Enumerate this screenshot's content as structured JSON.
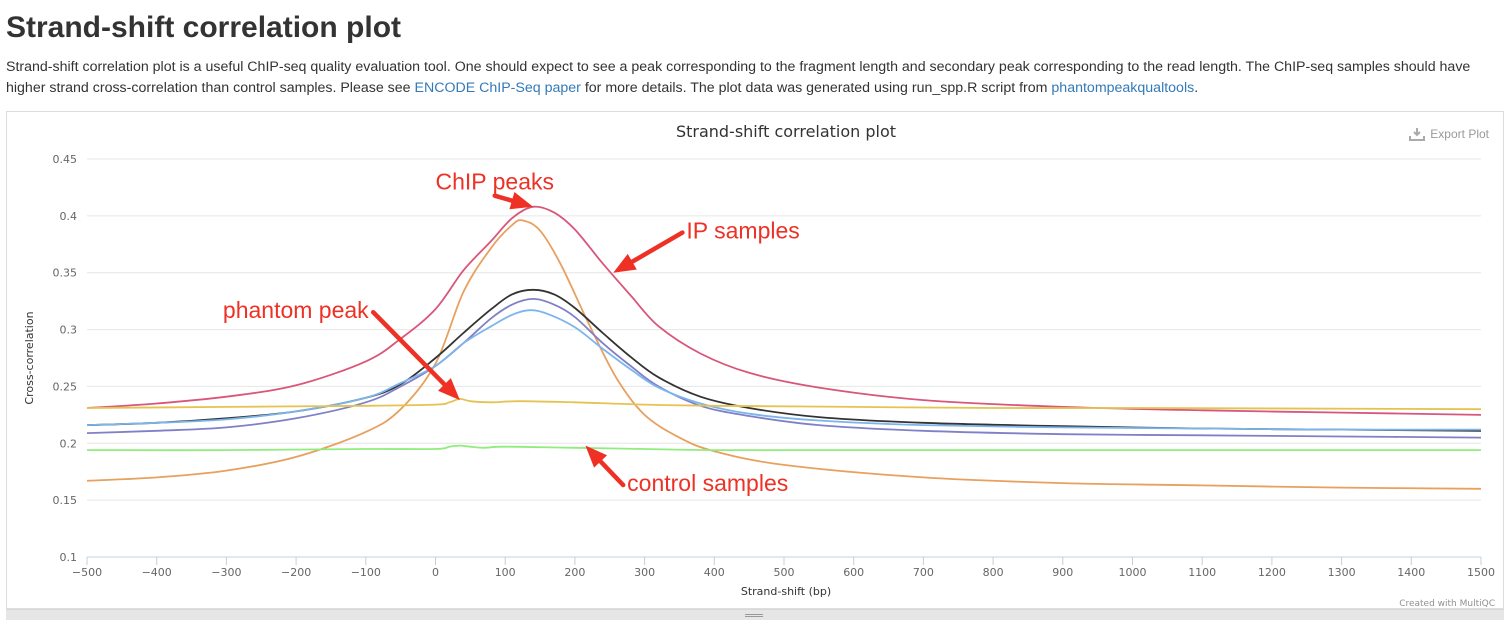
{
  "page": {
    "heading": "Strand-shift correlation plot",
    "intro_part1": "Strand-shift correlation plot is a useful ChIP-seq quality evaluation tool. One should expect to see a peak corresponding to the fragment length and secondary peak corresponding to the read length. The ChIP-seq samples should have higher strand cross-correlation than control samples. Please see ",
    "encode_link": "ENCODE ChIP-Seq paper",
    "intro_part2": " for more details. The plot data was generated using run_spp.R script from ",
    "phantom_link": "phantompeakqualtools",
    "intro_part3": "."
  },
  "toolbar": {
    "export_label": "Export Plot",
    "export_icon": "download-icon"
  },
  "chart_data": {
    "type": "line",
    "title": "Strand-shift correlation plot",
    "xlabel": "Strand-shift (bp)",
    "ylabel": "Cross-correlation",
    "xlim": [
      -500,
      1500
    ],
    "ylim": [
      0.1,
      0.45
    ],
    "xticks": [
      -500,
      -400,
      -300,
      -200,
      -100,
      0,
      100,
      200,
      300,
      400,
      500,
      600,
      700,
      800,
      900,
      1000,
      1100,
      1200,
      1300,
      1400,
      1500
    ],
    "yticks": [
      0.1,
      0.15,
      0.2,
      0.25,
      0.3,
      0.35,
      0.4,
      0.45
    ],
    "ytick_labels": [
      "0.1",
      "0.15",
      "0.2",
      "0.25",
      "0.3",
      "0.35",
      "0.4",
      "0.45"
    ],
    "grid": true,
    "credit": "Created with MultiQC",
    "series": [
      {
        "color": "#d9567b",
        "points": [
          [
            -500,
            0.231
          ],
          [
            -400,
            0.235
          ],
          [
            -300,
            0.241
          ],
          [
            -200,
            0.251
          ],
          [
            -100,
            0.272
          ],
          [
            -50,
            0.292
          ],
          [
            0,
            0.318
          ],
          [
            40,
            0.352
          ],
          [
            80,
            0.378
          ],
          [
            110,
            0.398
          ],
          [
            140,
            0.408
          ],
          [
            170,
            0.403
          ],
          [
            200,
            0.388
          ],
          [
            240,
            0.358
          ],
          [
            280,
            0.33
          ],
          [
            320,
            0.303
          ],
          [
            380,
            0.279
          ],
          [
            450,
            0.262
          ],
          [
            550,
            0.249
          ],
          [
            700,
            0.238
          ],
          [
            900,
            0.232
          ],
          [
            1100,
            0.229
          ],
          [
            1300,
            0.227
          ],
          [
            1500,
            0.225
          ]
        ]
      },
      {
        "color": "#e8a05f",
        "points": [
          [
            -500,
            0.167
          ],
          [
            -400,
            0.17
          ],
          [
            -300,
            0.176
          ],
          [
            -200,
            0.188
          ],
          [
            -100,
            0.21
          ],
          [
            -50,
            0.23
          ],
          [
            0,
            0.27
          ],
          [
            40,
            0.333
          ],
          [
            80,
            0.372
          ],
          [
            110,
            0.392
          ],
          [
            125,
            0.396
          ],
          [
            150,
            0.387
          ],
          [
            180,
            0.357
          ],
          [
            220,
            0.305
          ],
          [
            260,
            0.257
          ],
          [
            300,
            0.225
          ],
          [
            350,
            0.205
          ],
          [
            400,
            0.193
          ],
          [
            500,
            0.181
          ],
          [
            700,
            0.17
          ],
          [
            900,
            0.165
          ],
          [
            1100,
            0.163
          ],
          [
            1300,
            0.161
          ],
          [
            1500,
            0.16
          ]
        ]
      },
      {
        "color": "#333333",
        "points": [
          [
            -500,
            0.216
          ],
          [
            -400,
            0.218
          ],
          [
            -300,
            0.222
          ],
          [
            -200,
            0.228
          ],
          [
            -100,
            0.24
          ],
          [
            -50,
            0.252
          ],
          [
            0,
            0.275
          ],
          [
            40,
            0.297
          ],
          [
            80,
            0.318
          ],
          [
            110,
            0.331
          ],
          [
            140,
            0.335
          ],
          [
            170,
            0.331
          ],
          [
            200,
            0.319
          ],
          [
            240,
            0.297
          ],
          [
            280,
            0.276
          ],
          [
            320,
            0.258
          ],
          [
            380,
            0.241
          ],
          [
            450,
            0.231
          ],
          [
            550,
            0.223
          ],
          [
            700,
            0.218
          ],
          [
            900,
            0.215
          ],
          [
            1100,
            0.213
          ],
          [
            1300,
            0.212
          ],
          [
            1500,
            0.211
          ]
        ]
      },
      {
        "color": "#8080c8",
        "points": [
          [
            -500,
            0.209
          ],
          [
            -400,
            0.211
          ],
          [
            -300,
            0.214
          ],
          [
            -200,
            0.222
          ],
          [
            -100,
            0.236
          ],
          [
            -50,
            0.25
          ],
          [
            0,
            0.268
          ],
          [
            40,
            0.288
          ],
          [
            80,
            0.31
          ],
          [
            110,
            0.322
          ],
          [
            140,
            0.327
          ],
          [
            170,
            0.322
          ],
          [
            200,
            0.311
          ],
          [
            240,
            0.288
          ],
          [
            280,
            0.268
          ],
          [
            320,
            0.25
          ],
          [
            380,
            0.233
          ],
          [
            450,
            0.224
          ],
          [
            550,
            0.216
          ],
          [
            700,
            0.211
          ],
          [
            900,
            0.208
          ],
          [
            1100,
            0.207
          ],
          [
            1300,
            0.206
          ],
          [
            1500,
            0.205
          ]
        ]
      },
      {
        "color": "#7cb5ec",
        "points": [
          [
            -500,
            0.216
          ],
          [
            -400,
            0.218
          ],
          [
            -300,
            0.221
          ],
          [
            -200,
            0.228
          ],
          [
            -100,
            0.24
          ],
          [
            -50,
            0.253
          ],
          [
            0,
            0.268
          ],
          [
            40,
            0.288
          ],
          [
            80,
            0.303
          ],
          [
            110,
            0.313
          ],
          [
            135,
            0.317
          ],
          [
            160,
            0.314
          ],
          [
            200,
            0.302
          ],
          [
            240,
            0.283
          ],
          [
            280,
            0.265
          ],
          [
            320,
            0.249
          ],
          [
            380,
            0.235
          ],
          [
            450,
            0.226
          ],
          [
            550,
            0.22
          ],
          [
            700,
            0.216
          ],
          [
            900,
            0.214
          ],
          [
            1100,
            0.213
          ],
          [
            1300,
            0.212
          ],
          [
            1500,
            0.212
          ]
        ]
      },
      {
        "color": "#e4c352",
        "points": [
          [
            -500,
            0.231
          ],
          [
            -300,
            0.232
          ],
          [
            -100,
            0.233
          ],
          [
            0,
            0.234
          ],
          [
            20,
            0.236
          ],
          [
            35,
            0.239
          ],
          [
            50,
            0.237
          ],
          [
            80,
            0.236
          ],
          [
            120,
            0.237
          ],
          [
            200,
            0.236
          ],
          [
            300,
            0.234
          ],
          [
            400,
            0.233
          ],
          [
            600,
            0.232
          ],
          [
            800,
            0.231
          ],
          [
            1000,
            0.231
          ],
          [
            1500,
            0.23
          ]
        ]
      },
      {
        "color": "#90ed7d",
        "points": [
          [
            -500,
            0.194
          ],
          [
            -300,
            0.194
          ],
          [
            -100,
            0.195
          ],
          [
            0,
            0.195
          ],
          [
            20,
            0.197
          ],
          [
            35,
            0.198
          ],
          [
            50,
            0.197
          ],
          [
            70,
            0.196
          ],
          [
            100,
            0.197
          ],
          [
            200,
            0.196
          ],
          [
            300,
            0.195
          ],
          [
            400,
            0.194
          ],
          [
            600,
            0.194
          ],
          [
            1000,
            0.194
          ],
          [
            1500,
            0.194
          ]
        ]
      }
    ],
    "annotations": [
      {
        "text": "ChIP peaks",
        "x": 0,
        "y": 0.423,
        "arrow_to": [
          140,
          0.408
        ]
      },
      {
        "text": "IP samples",
        "x": 360,
        "y": 0.38,
        "arrow_to": [
          255,
          0.35
        ]
      },
      {
        "text": "phantom peak",
        "x": -305,
        "y": 0.31,
        "arrow_to": [
          35,
          0.238
        ]
      },
      {
        "text": "control samples",
        "x": 275,
        "y": 0.158,
        "arrow_to": [
          215,
          0.198
        ]
      }
    ]
  }
}
